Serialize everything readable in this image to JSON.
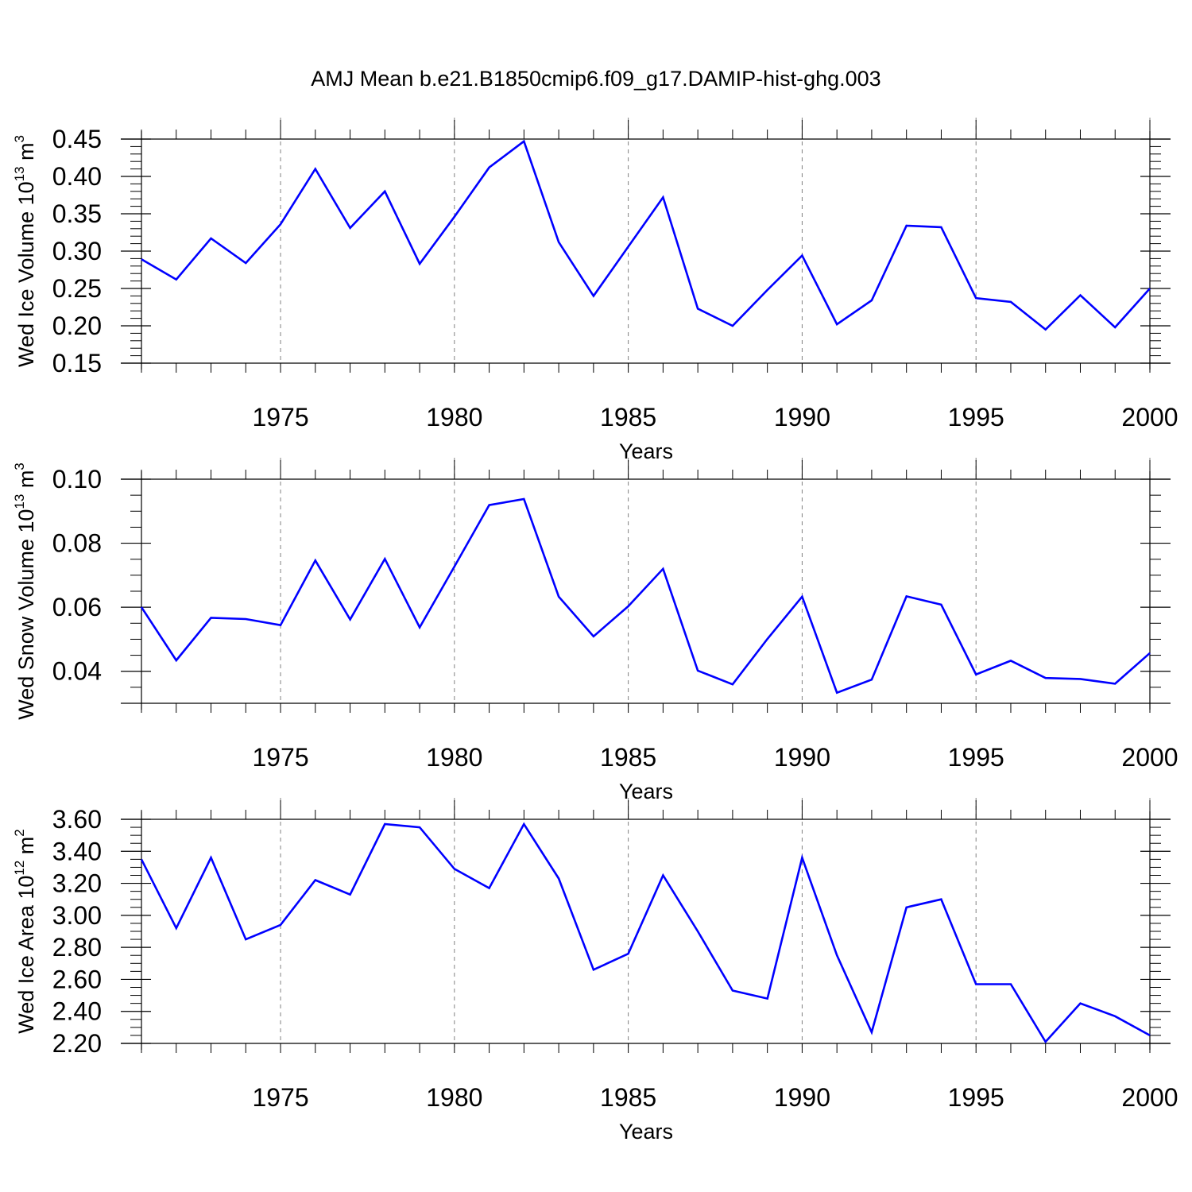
{
  "figure": {
    "title": "AMJ Mean b.e21.B1850cmip6.f09_g17.DAMIP-hist-ghg.003"
  },
  "colors": {
    "line": "#0000ff",
    "axis": "#000000",
    "grid": "#808080",
    "background": "#ffffff"
  },
  "chart_data": [
    {
      "type": "line",
      "title": "",
      "xlabel": "Years",
      "ylabel": "Wed Ice Volume 10^13 m^3",
      "ylabel_parts": {
        "text": "Wed Ice Volume 10",
        "exp": "13",
        "unit": " m",
        "unit_exp": "3"
      },
      "xlim": [
        1971,
        2000
      ],
      "ylim": [
        0.15,
        0.45
      ],
      "xticks": [
        1975,
        1980,
        1985,
        1990,
        1995,
        2000
      ],
      "yticks": [
        0.15,
        0.2,
        0.25,
        0.3,
        0.35,
        0.4,
        0.45
      ],
      "ytick_labels": [
        "0.15",
        "0.20",
        "0.25",
        "0.30",
        "0.35",
        "0.40",
        "0.45"
      ],
      "yminor_step": 0.01,
      "grid": "vertical dashed at major x ticks",
      "x": [
        1971,
        1972,
        1973,
        1974,
        1975,
        1976,
        1977,
        1978,
        1979,
        1980,
        1981,
        1982,
        1983,
        1984,
        1985,
        1986,
        1987,
        1988,
        1989,
        1990,
        1991,
        1992,
        1993,
        1994,
        1995,
        1996,
        1997,
        1998,
        1999,
        2000
      ],
      "series": [
        {
          "values": [
            0.289,
            0.262,
            0.317,
            0.284,
            0.336,
            0.41,
            0.331,
            0.38,
            0.283,
            0.346,
            0.412,
            0.447,
            0.312,
            0.24,
            0.306,
            0.372,
            0.223,
            0.2,
            0.248,
            0.294,
            0.202,
            0.234,
            0.334,
            0.332,
            0.237,
            0.232,
            0.195,
            0.241,
            0.198,
            0.25
          ]
        }
      ]
    },
    {
      "type": "line",
      "title": "",
      "xlabel": "Years",
      "ylabel": "Wed Snow Volume 10^13 m^3",
      "ylabel_parts": {
        "text": "Wed Snow Volume 10",
        "exp": "13",
        "unit": " m",
        "unit_exp": "3"
      },
      "xlim": [
        1971,
        2000
      ],
      "ylim": [
        0.03,
        0.1
      ],
      "xticks": [
        1975,
        1980,
        1985,
        1990,
        1995,
        2000
      ],
      "yticks": [
        0.04,
        0.06,
        0.08,
        0.1
      ],
      "ytick_labels": [
        "0.04",
        "0.06",
        "0.08",
        "0.10"
      ],
      "yminor_step": 0.005,
      "grid": "vertical dashed at major x ticks",
      "x": [
        1971,
        1972,
        1973,
        1974,
        1975,
        1976,
        1977,
        1978,
        1979,
        1980,
        1981,
        1982,
        1983,
        1984,
        1985,
        1986,
        1987,
        1988,
        1989,
        1990,
        1991,
        1992,
        1993,
        1994,
        1995,
        1996,
        1997,
        1998,
        1999,
        2000
      ],
      "series": [
        {
          "values": [
            0.06,
            0.0434,
            0.0567,
            0.0563,
            0.0544,
            0.0746,
            0.0562,
            0.0751,
            0.0537,
            0.0727,
            0.0919,
            0.0938,
            0.0633,
            0.0509,
            0.0603,
            0.072,
            0.0402,
            0.0359,
            0.0501,
            0.0633,
            0.0333,
            0.0374,
            0.0634,
            0.0608,
            0.039,
            0.0433,
            0.0379,
            0.0376,
            0.0361,
            0.0457
          ]
        }
      ]
    },
    {
      "type": "line",
      "title": "",
      "xlabel": "Years",
      "ylabel": "Wed Ice Area 10^12 m^2",
      "ylabel_parts": {
        "text": "Wed Ice Area 10",
        "exp": "12",
        "unit": " m",
        "unit_exp": "2"
      },
      "xlim": [
        1971,
        2000
      ],
      "ylim": [
        2.2,
        3.6
      ],
      "xticks": [
        1975,
        1980,
        1985,
        1990,
        1995,
        2000
      ],
      "yticks": [
        2.2,
        2.4,
        2.6,
        2.8,
        3.0,
        3.2,
        3.4,
        3.6
      ],
      "ytick_labels": [
        "2.20",
        "2.40",
        "2.60",
        "2.80",
        "3.00",
        "3.20",
        "3.40",
        "3.60"
      ],
      "yminor_step": 0.05,
      "grid": "vertical dashed at major x ticks",
      "x": [
        1971,
        1972,
        1973,
        1974,
        1975,
        1976,
        1977,
        1978,
        1979,
        1980,
        1981,
        1982,
        1983,
        1984,
        1985,
        1986,
        1987,
        1988,
        1989,
        1990,
        1991,
        1992,
        1993,
        1994,
        1995,
        1996,
        1997,
        1998,
        1999,
        2000
      ],
      "series": [
        {
          "values": [
            3.35,
            2.92,
            3.36,
            2.85,
            2.94,
            3.22,
            3.13,
            3.57,
            3.55,
            3.29,
            3.17,
            3.57,
            3.23,
            2.66,
            2.76,
            3.25,
            2.9,
            2.53,
            2.48,
            3.36,
            2.75,
            2.27,
            3.05,
            3.1,
            2.57,
            2.57,
            2.21,
            2.45,
            2.37,
            2.25
          ]
        }
      ]
    }
  ]
}
